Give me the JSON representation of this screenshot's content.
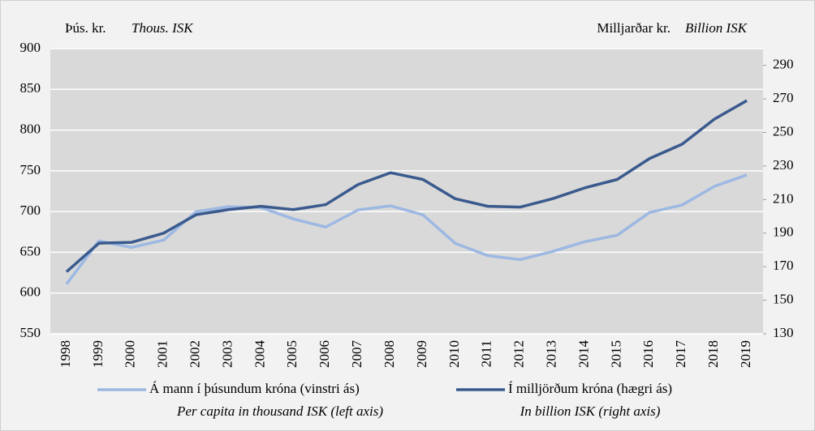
{
  "chart_data": {
    "type": "line",
    "left_axis_label": "Þús. kr.",
    "left_axis_label_en": "Thous. ISK",
    "right_axis_label": "Milljarðar kr.",
    "right_axis_label_en": "Billion ISK",
    "categories": [
      "1998",
      "1999",
      "2000",
      "2001",
      "2002",
      "2003",
      "2004",
      "2005",
      "2006",
      "2007",
      "2008",
      "2009",
      "2010",
      "2011",
      "2012",
      "2013",
      "2014",
      "2015",
      "2016",
      "2017",
      "2018",
      "2019"
    ],
    "series": [
      {
        "name": "Á mann í þúsundum króna (vinstri ás)",
        "name_en": "Per capita in thousand ISK (left axis)",
        "color": "#9db8e2",
        "axis": "y",
        "values": [
          611,
          664,
          656,
          665,
          700,
          706,
          705,
          691,
          681,
          702,
          707,
          696,
          661,
          646,
          641,
          651,
          663,
          671,
          699,
          708,
          731,
          745
        ]
      },
      {
        "name": "Í milljörðum króna (hægri ás)",
        "name_en": "In billion ISK (right axis)",
        "color": "#3a5a8e",
        "axis": "y2",
        "values": [
          167,
          184,
          184.5,
          190,
          201,
          204,
          206,
          204,
          207,
          219,
          226,
          222,
          210.5,
          206,
          205.5,
          210.5,
          217,
          222,
          234.5,
          243,
          258,
          269
        ]
      }
    ],
    "ylim": [
      550,
      900
    ],
    "yticks": [
      550,
      600,
      650,
      700,
      750,
      800,
      850,
      900
    ],
    "y2lim": [
      130,
      300
    ],
    "y2ticks": [
      130,
      150,
      170,
      190,
      210,
      230,
      250,
      270,
      290
    ],
    "grid": true
  }
}
